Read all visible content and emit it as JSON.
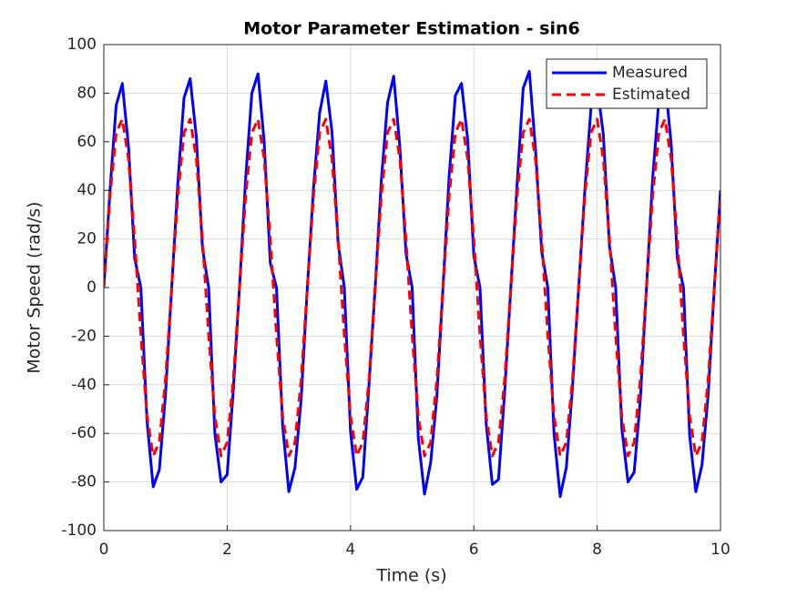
{
  "chart_data": {
    "type": "line",
    "title": "Motor Parameter Estimation - sin6",
    "x_label": "Time (s)",
    "y_label": "Motor Speed (rad/s)",
    "x": [
      0,
      0.1,
      0.2,
      0.3,
      0.4,
      0.5,
      0.6,
      0.7,
      0.8,
      0.9,
      1,
      1.1,
      1.2,
      1.3,
      1.4,
      1.5,
      1.6,
      1.7,
      1.8,
      1.9,
      2,
      2.1,
      2.2,
      2.3,
      2.4,
      2.5,
      2.6,
      2.7,
      2.8,
      2.9,
      3,
      3.1,
      3.2,
      3.3,
      3.4,
      3.5,
      3.6,
      3.7,
      3.8,
      3.9,
      4,
      4.1,
      4.2,
      4.3,
      4.4,
      4.5,
      4.6,
      4.7,
      4.8,
      4.9,
      5,
      5.1,
      5.2,
      5.3,
      5.4,
      5.5,
      5.6,
      5.7,
      5.8,
      5.9,
      6,
      6.1,
      6.2,
      6.3,
      6.4,
      6.5,
      6.6,
      6.7,
      6.8,
      6.9,
      7,
      7.1,
      7.2,
      7.3,
      7.4,
      7.5,
      7.6,
      7.7,
      7.8,
      7.9,
      8,
      8.1,
      8.2,
      8.3,
      8.4,
      8.5,
      8.6,
      8.7,
      8.8,
      8.9,
      9,
      9.1,
      9.2,
      9.3,
      9.4,
      9.5,
      9.6,
      9.7,
      9.8,
      9.9,
      10
    ],
    "series": [
      {
        "name": "Measured",
        "color": "#0000ff",
        "dash": "solid",
        "values": [
          0,
          40,
          75,
          84,
          58,
          12,
          0,
          -55,
          -82,
          -75,
          -44,
          0,
          43,
          78,
          86,
          62,
          16,
          0,
          -60,
          -80,
          -77,
          -42,
          0,
          45,
          80,
          88,
          60,
          10,
          0,
          -57,
          -84,
          -74,
          -46,
          0,
          41,
          72,
          85,
          64,
          18,
          0,
          -59,
          -83,
          -78,
          -40,
          0,
          44,
          76,
          87,
          58,
          14,
          0,
          -62,
          -85,
          -72,
          -45,
          0,
          46,
          79,
          84,
          61,
          13,
          0,
          -56,
          -81,
          -79,
          -43,
          0,
          42,
          82,
          89,
          57,
          15,
          0,
          -60,
          -86,
          -74,
          -41,
          0,
          40,
          74,
          83,
          63,
          17,
          0,
          -58,
          -80,
          -76,
          -46,
          0,
          45,
          77,
          86,
          59,
          12,
          0,
          -61,
          -84,
          -73,
          -44,
          0,
          40
        ]
      },
      {
        "name": "Estimated",
        "color": "#ff0000",
        "dash": "dashed",
        "values": [
          0,
          37.8,
          63.7,
          69.3,
          52.9,
          19.7,
          -19.7,
          -52.9,
          -69.3,
          -63.7,
          -37.8,
          0,
          37.8,
          63.7,
          69.3,
          52.9,
          19.7,
          -19.7,
          -52.9,
          -69.3,
          -63.7,
          -37.8,
          0,
          37.8,
          63.7,
          69.3,
          52.9,
          19.7,
          -19.7,
          -52.9,
          -69.3,
          -63.7,
          -37.8,
          0,
          37.8,
          63.7,
          69.3,
          52.9,
          19.7,
          -19.7,
          -52.9,
          -69.3,
          -63.7,
          -37.8,
          0,
          37.8,
          63.7,
          69.3,
          52.9,
          19.7,
          -19.7,
          -52.9,
          -69.3,
          -63.7,
          -37.8,
          0,
          37.8,
          63.7,
          69.3,
          52.9,
          19.7,
          -19.7,
          -52.9,
          -69.3,
          -63.7,
          -37.8,
          0,
          37.8,
          63.7,
          69.3,
          52.9,
          19.7,
          -19.7,
          -52.9,
          -69.3,
          -63.7,
          -37.8,
          0,
          37.8,
          63.7,
          69.3,
          52.9,
          19.7,
          -19.7,
          -52.9,
          -69.3,
          -63.7,
          -37.8,
          0,
          37.8,
          63.7,
          69.3,
          52.9,
          19.7,
          -19.7,
          -52.9,
          -69.3,
          -63.7,
          -37.8,
          0,
          37.8
        ]
      }
    ],
    "xlim": [
      0,
      10
    ],
    "xticks": [
      0,
      2,
      4,
      6,
      8,
      10
    ],
    "ylim": [
      -100,
      100
    ],
    "yticks": [
      -100,
      -80,
      -60,
      -40,
      -20,
      0,
      20,
      40,
      60,
      80,
      100
    ],
    "grid": true,
    "legend": "upper-right"
  }
}
